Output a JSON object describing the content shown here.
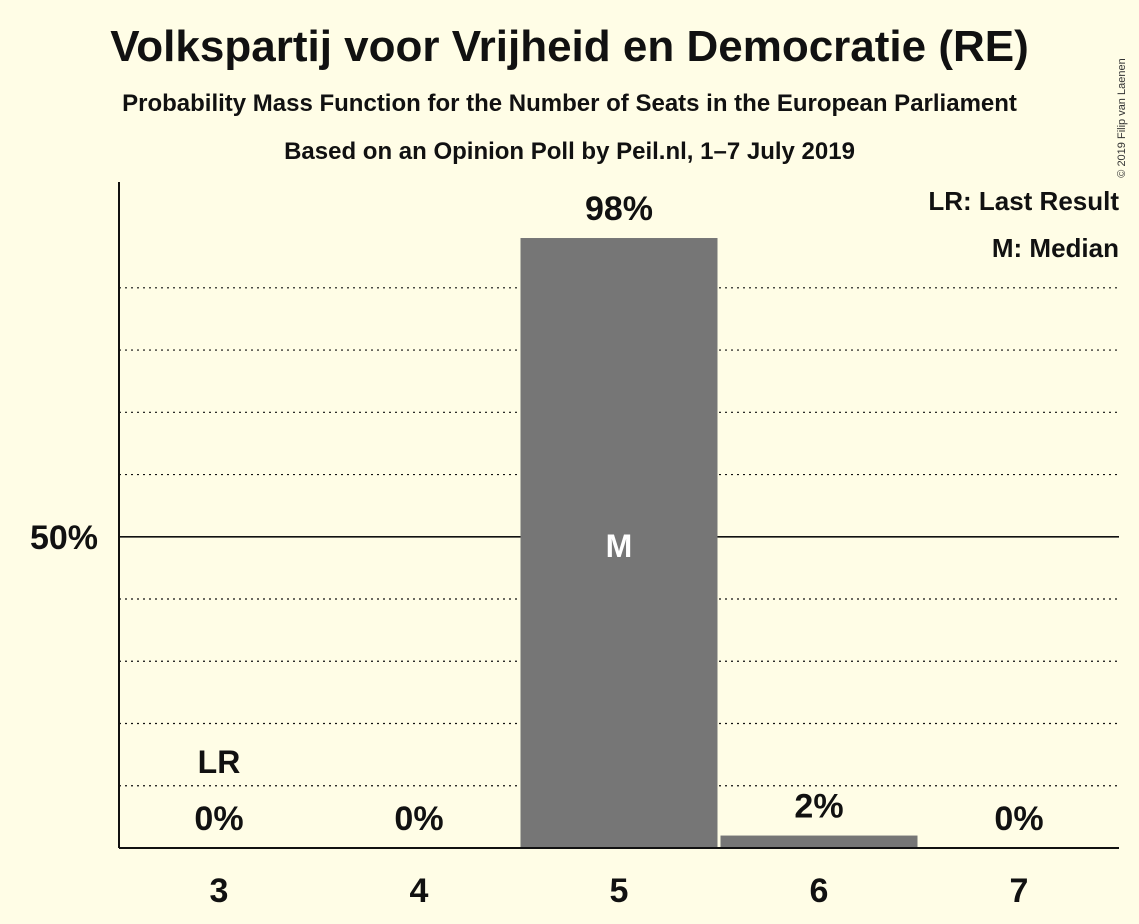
{
  "title": "Volkspartij voor Vrijheid en Democratie (RE)",
  "subtitle1": "Probability Mass Function for the Number of Seats in the European Parliament",
  "subtitle2": "Based on an Opinion Poll by Peil.nl, 1–7 July 2019",
  "copyright": "© 2019 Filip van Laenen",
  "legend": {
    "lr": "LR: Last Result",
    "m": "M: Median"
  },
  "colors": {
    "background": "#fffde6",
    "bar": "#767676",
    "text": "#111111"
  },
  "chart_data": {
    "type": "bar",
    "categories": [
      "3",
      "4",
      "5",
      "6",
      "7"
    ],
    "values": [
      0,
      0,
      98,
      2,
      0
    ],
    "value_labels": [
      "0%",
      "0%",
      "98%",
      "2%",
      "0%"
    ],
    "ylim": [
      0,
      107
    ],
    "ytick_labels": [
      {
        "value": 50,
        "label": "50%"
      }
    ],
    "solid_gridlines": [
      50
    ],
    "dotted_gridlines": [
      10,
      20,
      30,
      40,
      60,
      70,
      80,
      90
    ],
    "markers": [
      {
        "category": "3",
        "label": "LR",
        "meaning": "Last Result"
      },
      {
        "category": "5",
        "label": "M",
        "meaning": "Median"
      }
    ],
    "legend_position": "top-right"
  }
}
